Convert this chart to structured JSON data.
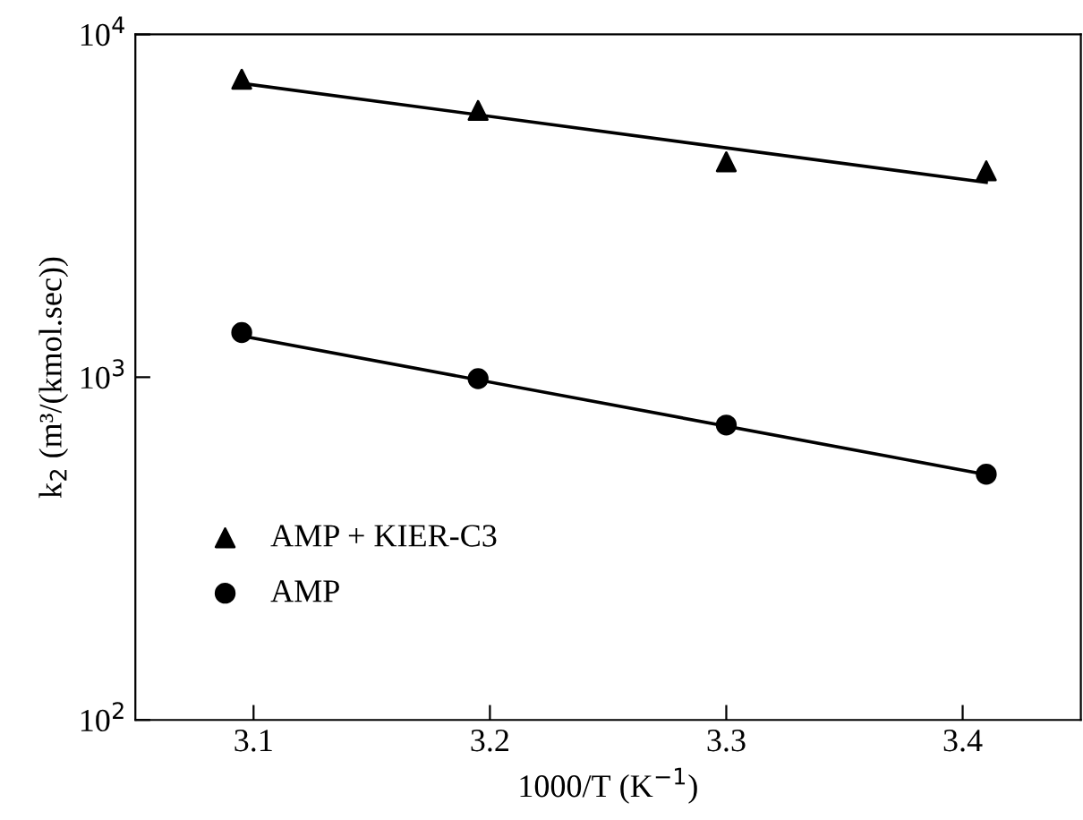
{
  "chart_data": {
    "type": "scatter",
    "xlabel": "1000/T (K$^{−1}$)",
    "ylabel": "k$_{2}$ (m³/(kmol.sec))",
    "log": "y",
    "xlim": [
      3.05,
      3.45
    ],
    "ylim": [
      100,
      10000
    ],
    "xticks": [
      3.1,
      3.2,
      3.3,
      3.4
    ],
    "yticks": [
      {
        "value": 100,
        "label": "10$^{2}$"
      },
      {
        "value": 1000,
        "label": "10$^{3}$"
      },
      {
        "value": 10000,
        "label": "10$^{4}$"
      }
    ],
    "grid": false,
    "legend": "bottom left",
    "series": [
      {
        "name": "AMP + KIER-C3",
        "color": "#000000",
        "marker": "triangle",
        "x": [
          3.095,
          3.195,
          3.3,
          3.41
        ],
        "values": [
          7400,
          6000,
          4250,
          4000
        ]
      },
      {
        "name": "AMP",
        "color": "#000000",
        "marker": "circle",
        "x": [
          3.095,
          3.195,
          3.3,
          3.41
        ],
        "values": [
          1350,
          990,
          725,
          521
        ]
      },
      {
        "type": "line",
        "color": "#000000",
        "marker": "none",
        "line_style": "solid",
        "x": [
          3.095,
          3.41
        ],
        "values": [
          7200,
          3700
        ]
      },
      {
        "type": "line",
        "color": "#000000",
        "marker": "none",
        "line_style": "solid",
        "x": [
          3.095,
          3.41
        ],
        "values": [
          1320,
          520
        ]
      }
    ]
  }
}
